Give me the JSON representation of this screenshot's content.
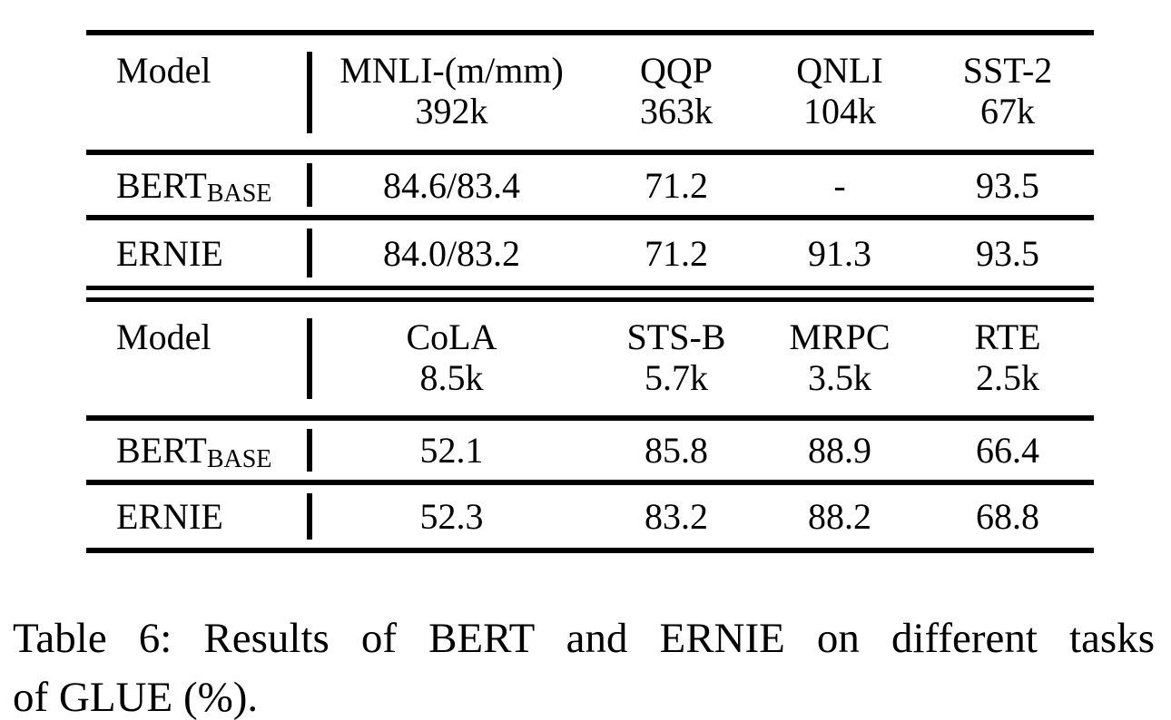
{
  "page": {
    "background": "#ffffff",
    "text_color": "#000000",
    "rule_color": "#000000"
  },
  "table": {
    "sections": [
      {
        "header": {
          "model_label": "Model",
          "columns": [
            {
              "name": "MNLI-(m/mm)",
              "size": "392k"
            },
            {
              "name": "QQP",
              "size": "363k"
            },
            {
              "name": "QNLI",
              "size": "104k"
            },
            {
              "name": "SST-2",
              "size": "67k"
            }
          ]
        },
        "rows": [
          {
            "model": "BERT",
            "model_sub": "BASE",
            "values": [
              "84.6/83.4",
              "71.2",
              "-",
              "93.5"
            ]
          },
          {
            "model": "ERNIE",
            "model_sub": "",
            "values": [
              "84.0/83.2",
              "71.2",
              "91.3",
              "93.5"
            ]
          }
        ]
      },
      {
        "header": {
          "model_label": "Model",
          "columns": [
            {
              "name": "CoLA",
              "size": "8.5k"
            },
            {
              "name": "STS-B",
              "size": "5.7k"
            },
            {
              "name": "MRPC",
              "size": "3.5k"
            },
            {
              "name": "RTE",
              "size": "2.5k"
            }
          ]
        },
        "rows": [
          {
            "model": "BERT",
            "model_sub": "BASE",
            "values": [
              "52.1",
              "85.8",
              "88.9",
              "66.4"
            ]
          },
          {
            "model": "ERNIE",
            "model_sub": "",
            "values": [
              "52.3",
              "83.2",
              "88.2",
              "68.8"
            ]
          }
        ]
      }
    ]
  },
  "caption": {
    "lines": [
      "Table 6: Results of BERT and ERNIE on different tasks",
      "of GLUE (%)."
    ]
  }
}
